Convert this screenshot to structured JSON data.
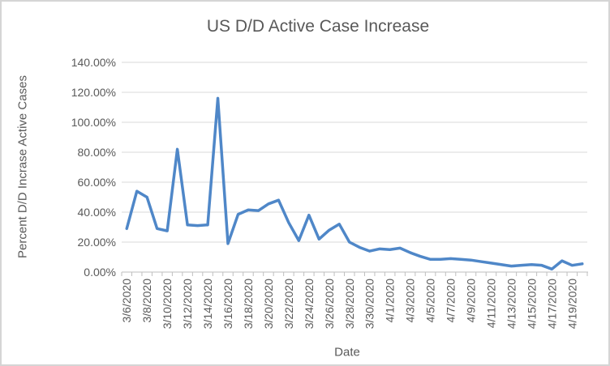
{
  "window": {
    "background": "#ffffff",
    "border_color": "#d5d5d5"
  },
  "chart_data": {
    "type": "line",
    "title": "US D/D Active Case Increase",
    "xlabel": "Date",
    "ylabel": "Percent D/D Incrase Active Cases",
    "x": [
      "3/6/2020",
      "3/7/2020",
      "3/8/2020",
      "3/9/2020",
      "3/10/2020",
      "3/11/2020",
      "3/12/2020",
      "3/13/2020",
      "3/14/2020",
      "3/15/2020",
      "3/16/2020",
      "3/17/2020",
      "3/18/2020",
      "3/19/2020",
      "3/20/2020",
      "3/21/2020",
      "3/22/2020",
      "3/23/2020",
      "3/24/2020",
      "3/25/2020",
      "3/26/2020",
      "3/27/2020",
      "3/28/2020",
      "3/29/2020",
      "3/30/2020",
      "3/31/2020",
      "4/1/2020",
      "4/2/2020",
      "4/3/2020",
      "4/4/2020",
      "4/5/2020",
      "4/6/2020",
      "4/7/2020",
      "4/8/2020",
      "4/9/2020",
      "4/10/2020",
      "4/11/2020",
      "4/12/2020",
      "4/13/2020",
      "4/14/2020",
      "4/15/2020",
      "4/16/2020",
      "4/17/2020",
      "4/18/2020",
      "4/19/2020",
      "4/20/2020"
    ],
    "values_percent": [
      29,
      54,
      50,
      29,
      27.5,
      82,
      31.5,
      31,
      31.5,
      116,
      19,
      38.5,
      41.5,
      41,
      45.5,
      48,
      33,
      21,
      38,
      22,
      28,
      32,
      20,
      16.5,
      14,
      15.5,
      15,
      16,
      13,
      10.5,
      8.5,
      8.5,
      9,
      8.5,
      8,
      7,
      6,
      5,
      4,
      4.5,
      5,
      4.5,
      2,
      7.5,
      4.5,
      5.5
    ],
    "x_tick_labels": [
      "3/6/2020",
      "3/8/2020",
      "3/10/2020",
      "3/12/2020",
      "3/14/2020",
      "3/16/2020",
      "3/18/2020",
      "3/20/2020",
      "3/22/2020",
      "3/24/2020",
      "3/26/2020",
      "3/28/2020",
      "3/30/2020",
      "4/1/2020",
      "4/3/2020",
      "4/5/2020",
      "4/7/2020",
      "4/9/2020",
      "4/11/2020",
      "4/13/2020",
      "4/15/2020",
      "4/17/2020",
      "4/19/2020"
    ],
    "x_tick_interval": 2,
    "y_tick_labels": [
      "0.00%",
      "20.00%",
      "40.00%",
      "60.00%",
      "80.00%",
      "100.00%",
      "120.00%",
      "140.00%"
    ],
    "y_tick_values": [
      0,
      20,
      40,
      60,
      80,
      100,
      120,
      140
    ],
    "ylim": [
      0,
      140
    ],
    "grid": true,
    "legend": false,
    "line_color": "#4f87c8",
    "gridline_color": "#d9d9d9",
    "axis_color": "#bfbfbf",
    "text_color": "#595959"
  }
}
